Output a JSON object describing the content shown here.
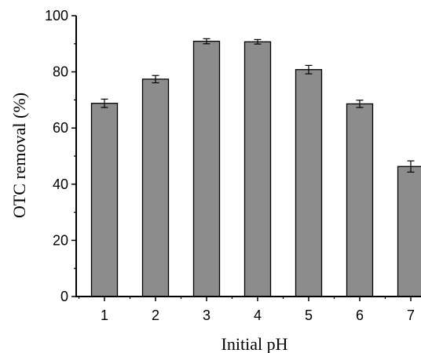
{
  "chart_data": {
    "type": "bar",
    "categories": [
      "1",
      "2",
      "3",
      "4",
      "5",
      "6",
      "7"
    ],
    "values": [
      68.8,
      77.4,
      90.9,
      90.7,
      80.8,
      68.6,
      46.3
    ],
    "errors": [
      1.5,
      1.3,
      0.9,
      0.8,
      1.5,
      1.3,
      2.0
    ],
    "xlabel": "Initial pH",
    "ylabel": "OTC removal (%)",
    "ylim": [
      0,
      100
    ],
    "yticks": [
      0,
      20,
      40,
      60,
      80,
      100
    ],
    "grid": false,
    "bar_color": "#8c8c8c",
    "bar_edge_color": "#000000"
  }
}
